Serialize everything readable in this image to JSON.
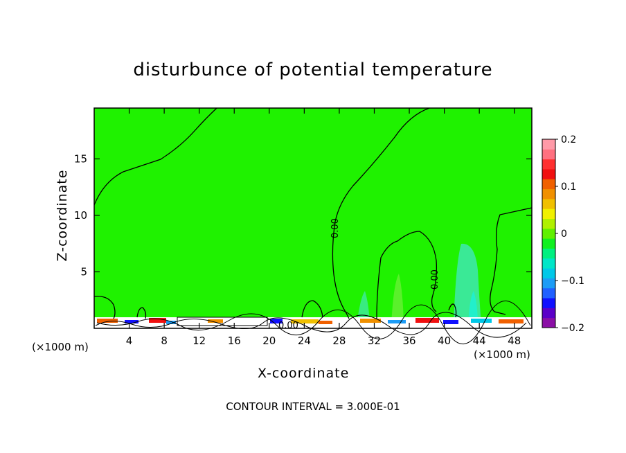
{
  "chart_data": {
    "type": "heatmap",
    "title": "disturbunce of potential temperature",
    "xlabel": "X-coordinate",
    "ylabel": "Z-coordinate",
    "x_unit": "(×1000 m)",
    "x_ticks": [
      4,
      8,
      12,
      16,
      20,
      24,
      28,
      32,
      36,
      40,
      44,
      48
    ],
    "y_ticks": [
      5,
      10,
      15
    ],
    "xlim": [
      0,
      50
    ],
    "ylim": [
      0,
      19.5
    ],
    "colorbar": {
      "min": -0.2,
      "max": 0.2,
      "tick_labels": [
        "0.2",
        "0.1",
        "0",
        "−0.1",
        "−0.2"
      ],
      "tick_values": [
        0.2,
        0.1,
        0,
        -0.1,
        -0.2
      ],
      "colors": [
        "#8b0fa6",
        "#5b00c8",
        "#1010ff",
        "#2060ff",
        "#1c9cf6",
        "#00c8e8",
        "#00e6c8",
        "#00f080",
        "#10f020",
        "#60f000",
        "#b0f000",
        "#f0f000",
        "#f0c000",
        "#f09000",
        "#f06000",
        "#f01010",
        "#ff3030",
        "#ff7080",
        "#ff9aa8"
      ]
    },
    "contour_label": "0.00",
    "footnote": "CONTOUR INTERVAL = 3.000E-01"
  }
}
